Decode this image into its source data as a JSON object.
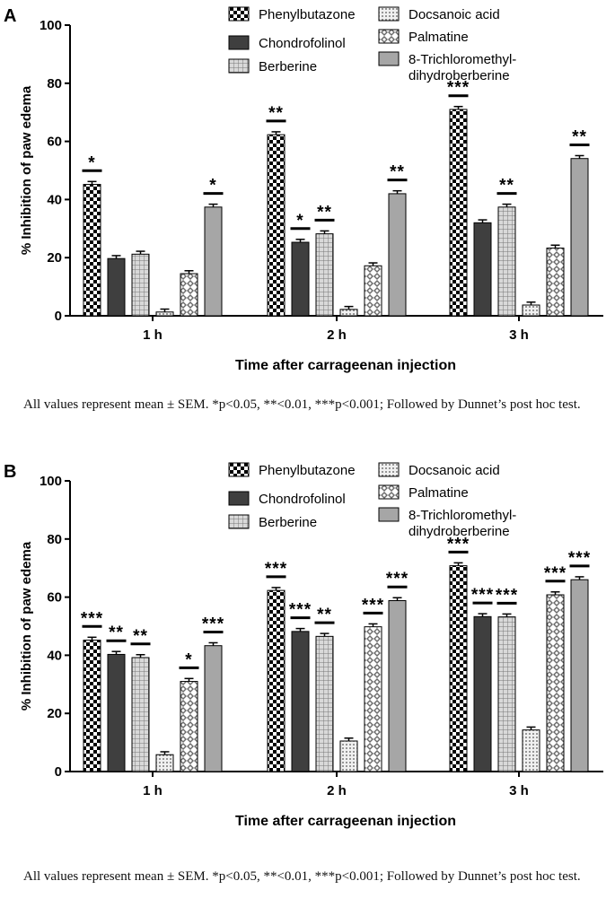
{
  "chart_data": [
    {
      "type": "bar",
      "panel_label": "A",
      "xlabel": "Time after carrageenan injection",
      "ylabel": "% Inhibition of paw edema",
      "ylim": [
        0,
        100
      ],
      "yticks": [
        0,
        20,
        40,
        60,
        80,
        100
      ],
      "categories": [
        "1 h",
        "2 h",
        "3 h"
      ],
      "series": [
        {
          "name": "Phenylbutazone",
          "pattern": "checker",
          "values": [
            45.2,
            62.3,
            71.0
          ],
          "errors": [
            1.0,
            1.0,
            1.0
          ],
          "significance": [
            "*",
            "**",
            "***"
          ]
        },
        {
          "name": "Chondrofolinol",
          "pattern": "dark",
          "values": [
            19.7,
            25.3,
            32.0
          ],
          "errors": [
            1.0,
            1.0,
            1.0
          ],
          "significance": [
            "",
            "*",
            ""
          ]
        },
        {
          "name": "Berberine",
          "pattern": "grid",
          "values": [
            21.2,
            28.2,
            37.4
          ],
          "errors": [
            1.0,
            1.0,
            1.0
          ],
          "significance": [
            "",
            "**",
            "**"
          ]
        },
        {
          "name": "Docsanoic acid",
          "pattern": "dots",
          "values": [
            1.3,
            2.2,
            3.7
          ],
          "errors": [
            1.0,
            1.0,
            1.0
          ],
          "significance": [
            "",
            "",
            ""
          ]
        },
        {
          "name": "Palmatine",
          "pattern": "diamond",
          "values": [
            14.5,
            17.2,
            23.3
          ],
          "errors": [
            1.0,
            1.0,
            1.0
          ],
          "significance": [
            "",
            "",
            ""
          ]
        },
        {
          "name": "8-Trichloromethyl-dihydroberberine",
          "pattern": "grey",
          "values": [
            37.4,
            42.0,
            54.1
          ],
          "errors": [
            1.0,
            1.0,
            1.0
          ],
          "significance": [
            "*",
            "**",
            "**"
          ]
        }
      ],
      "legend_left": [
        {
          "label": "Phenylbutazone",
          "pattern": "checker"
        },
        {
          "label": "Chondrofolinol",
          "pattern": "dark"
        },
        {
          "label": "Berberine",
          "pattern": "grid"
        }
      ],
      "legend_right": [
        {
          "label": "Docsanoic acid",
          "pattern": "dots"
        },
        {
          "label": "Palmatine",
          "pattern": "diamond"
        },
        {
          "label": "8-Trichloromethyl-",
          "label2": "dihydroberberine",
          "pattern": "grey"
        }
      ]
    },
    {
      "type": "bar",
      "panel_label": "B",
      "xlabel": "Time after carrageenan injection",
      "ylabel": "% Inhibition of paw edema",
      "ylim": [
        0,
        100
      ],
      "yticks": [
        0,
        20,
        40,
        60,
        80,
        100
      ],
      "categories": [
        "1 h",
        "2 h",
        "3 h"
      ],
      "series": [
        {
          "name": "Phenylbutazone",
          "pattern": "checker",
          "values": [
            45.2,
            62.3,
            70.8
          ],
          "errors": [
            1.0,
            1.0,
            1.0
          ],
          "significance": [
            "***",
            "***",
            "***"
          ]
        },
        {
          "name": "Chondrofolinol",
          "pattern": "dark",
          "values": [
            40.3,
            48.2,
            53.3
          ],
          "errors": [
            1.0,
            1.0,
            1.0
          ],
          "significance": [
            "**",
            "***",
            "***"
          ]
        },
        {
          "name": "Berberine",
          "pattern": "grid",
          "values": [
            39.2,
            46.5,
            53.2
          ],
          "errors": [
            1.0,
            1.0,
            1.0
          ],
          "significance": [
            "**",
            "**",
            "***"
          ]
        },
        {
          "name": "Docsanoic acid",
          "pattern": "dots",
          "values": [
            5.8,
            10.5,
            14.3
          ],
          "errors": [
            1.0,
            1.0,
            1.0
          ],
          "significance": [
            "",
            "",
            ""
          ]
        },
        {
          "name": "Palmatine",
          "pattern": "diamond",
          "values": [
            31.0,
            49.8,
            60.8
          ],
          "errors": [
            1.0,
            1.0,
            1.0
          ],
          "significance": [
            "*",
            "***",
            "***"
          ]
        },
        {
          "name": "8-Trichloromethyl-dihydroberberine",
          "pattern": "grey",
          "values": [
            43.3,
            58.8,
            66.0
          ],
          "errors": [
            1.0,
            1.0,
            1.0
          ],
          "significance": [
            "***",
            "***",
            "***"
          ]
        }
      ],
      "legend_left": [
        {
          "label": "Phenylbutazone",
          "pattern": "checker"
        },
        {
          "label": "Chondrofolinol",
          "pattern": "dark"
        },
        {
          "label": "Berberine",
          "pattern": "grid"
        }
      ],
      "legend_right": [
        {
          "label": "Docsanoic acid",
          "pattern": "dots"
        },
        {
          "label": "Palmatine",
          "pattern": "diamond"
        },
        {
          "label": "8-Trichloromethyl-",
          "label2": "dihydroberberine",
          "pattern": "grey"
        }
      ]
    }
  ],
  "captions": {
    "a": "All values represent mean ± SEM. *p<0.05, **<0.01, ***p<0.001; Followed by Dunnet’s post hoc test.",
    "b": "All values represent mean ± SEM. *p<0.05, **<0.01, ***p<0.001; Followed by Dunnet’s post hoc test."
  },
  "colors": {
    "dark": "#3f3f3f",
    "grey": "#a6a6a6",
    "axis": "#000000"
  }
}
